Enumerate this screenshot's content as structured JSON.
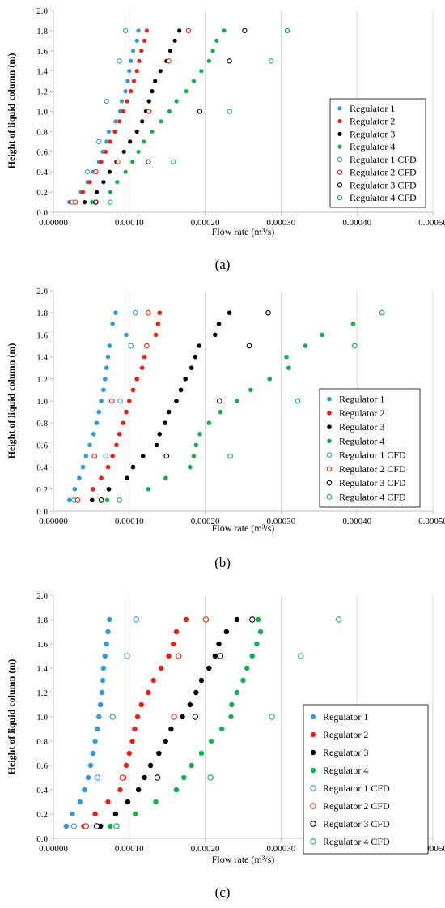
{
  "colors": {
    "Regulator 1": "#2e9bd6",
    "Regulator 2": "#f51d0d",
    "Regulator 3": "#000000",
    "Regulator 4": "#12b04b",
    "grid": "#d9d9d9",
    "axis": "#bfbfbf"
  },
  "chart_data": [
    {
      "type": "scatter",
      "panel_label": "(a)",
      "xlabel": "Flow rate (m³/s)",
      "ylabel": "Height of liquid column (m)",
      "xlim": [
        0,
        0.0005
      ],
      "ylim": [
        0,
        2.0
      ],
      "xticks": [
        0,
        0.0001,
        0.0002,
        0.0003,
        0.0004,
        0.0005
      ],
      "xtick_labels": [
        "0.00000",
        "0.00010",
        "0.00020",
        "0.00030",
        "0.00040",
        "0.00050"
      ],
      "yticks": [
        0,
        0.2,
        0.4,
        0.6,
        0.8,
        1.0,
        1.2,
        1.4,
        1.6,
        1.8,
        2.0
      ],
      "ytick_labels": [
        "0.0",
        "0.2",
        "0.4",
        "0.6",
        "0.8",
        "1.0",
        "1.2",
        "1.4",
        "1.6",
        "1.8",
        "2.0"
      ],
      "grid": "vertical",
      "legend_position": "right",
      "series": [
        {
          "name": "Regulator 1",
          "marker": "filled",
          "x": [
            2.1e-05,
            3.6e-05,
            4.5e-05,
            5.2e-05,
            6e-05,
            6.5e-05,
            7e-05,
            7.3e-05,
            8.2e-05,
            8.8e-05,
            9e-05,
            9.5e-05,
            9.8e-05,
            0.0001,
            0.000102,
            0.000105,
            0.00011,
            0.000112
          ],
          "y": [
            0.1,
            0.2,
            0.3,
            0.4,
            0.5,
            0.6,
            0.7,
            0.8,
            0.9,
            1.0,
            1.1,
            1.2,
            1.3,
            1.4,
            1.5,
            1.6,
            1.7,
            1.8
          ]
        },
        {
          "name": "Regulator 2",
          "marker": "filled",
          "x": [
            2.3e-05,
            3.9e-05,
            4.8e-05,
            5.6e-05,
            6.3e-05,
            6.9e-05,
            7.5e-05,
            8.1e-05,
            8.7e-05,
            9.2e-05,
            9.7e-05,
            0.000102,
            0.000106,
            0.00011,
            0.000113,
            0.000116,
            0.00012,
            0.000123
          ],
          "y": [
            0.1,
            0.2,
            0.3,
            0.4,
            0.5,
            0.6,
            0.7,
            0.8,
            0.9,
            1.0,
            1.1,
            1.2,
            1.3,
            1.4,
            1.5,
            1.6,
            1.7,
            1.8
          ]
        },
        {
          "name": "Regulator 3",
          "marker": "filled",
          "x": [
            4.1e-05,
            5.7e-05,
            6.6e-05,
            7.4e-05,
            8.3e-05,
            9.3e-05,
            0.000101,
            0.00011,
            0.000117,
            0.000122,
            0.000126,
            0.00013,
            0.000134,
            0.000141,
            0.000149,
            0.000154,
            0.00016,
            0.000166
          ],
          "y": [
            0.1,
            0.2,
            0.3,
            0.4,
            0.5,
            0.6,
            0.7,
            0.8,
            0.9,
            1.0,
            1.1,
            1.2,
            1.3,
            1.4,
            1.5,
            1.6,
            1.7,
            1.8
          ]
        },
        {
          "name": "Regulator 4",
          "marker": "filled",
          "x": [
            5.1e-05,
            7.5e-05,
            8.4e-05,
            9.5e-05,
            0.000104,
            0.000112,
            0.000119,
            0.00013,
            0.000142,
            0.000153,
            0.000162,
            0.000175,
            0.000185,
            0.000195,
            0.000205,
            0.00021,
            0.000215,
            0.000225
          ],
          "y": [
            0.1,
            0.2,
            0.3,
            0.4,
            0.5,
            0.6,
            0.7,
            0.8,
            0.9,
            1.0,
            1.1,
            1.2,
            1.3,
            1.4,
            1.5,
            1.6,
            1.7,
            1.8
          ]
        },
        {
          "name": "Regulator 1 CFD",
          "marker": "open",
          "x": [
            2.5e-05,
            4.5e-05,
            6e-05,
            7e-05,
            8.7e-05,
            9.5e-05
          ],
          "y": [
            0.1,
            0.4,
            0.7,
            1.1,
            1.5,
            1.8
          ]
        },
        {
          "name": "Regulator 2 CFD",
          "marker": "open",
          "x": [
            2.9e-05,
            5.6e-05,
            8.5e-05,
            0.000126,
            0.000152,
            0.000178
          ],
          "y": [
            0.1,
            0.4,
            0.5,
            1.0,
            1.5,
            1.8
          ]
        },
        {
          "name": "Regulator 3 CFD",
          "marker": "open",
          "x": [
            5.6e-05,
            0.000125,
            0.000193,
            0.000232,
            0.000252
          ],
          "y": [
            0.1,
            0.5,
            1.0,
            1.5,
            1.8
          ]
        },
        {
          "name": "Regulator 4 CFD",
          "marker": "open",
          "x": [
            7.5e-05,
            0.000158,
            0.000232,
            0.000287,
            0.000308
          ],
          "y": [
            0.1,
            0.5,
            1.0,
            1.5,
            1.8
          ]
        }
      ]
    },
    {
      "type": "scatter",
      "panel_label": "(b)",
      "xlabel": "Flow rate (m³/s)",
      "ylabel": "Height of liquid column (m)",
      "xlim": [
        0,
        0.0005
      ],
      "ylim": [
        0,
        2.0
      ],
      "xticks": [
        0,
        0.0001,
        0.0002,
        0.0003,
        0.0004,
        0.0005
      ],
      "xtick_labels": [
        "0.00000",
        "0.00010",
        "0.00020",
        "0.00030",
        "0.00040",
        "0.00050"
      ],
      "yticks": [
        0,
        0.2,
        0.4,
        0.6,
        0.8,
        1.0,
        1.2,
        1.4,
        1.6,
        1.8,
        2.0
      ],
      "ytick_labels": [
        "0.0",
        "0.2",
        "0.4",
        "0.6",
        "0.8",
        "1.0",
        "1.2",
        "1.4",
        "1.6",
        "1.8",
        "2.0"
      ],
      "grid": "vertical",
      "legend_position": "right",
      "series": [
        {
          "name": "Regulator 1",
          "marker": "filled",
          "x": [
            2.1e-05,
            2.8e-05,
            3.4e-05,
            3.9e-05,
            4.3e-05,
            4.8e-05,
            5.3e-05,
            5.7e-05,
            6e-05,
            6.3e-05,
            6.6e-05,
            6.8e-05,
            7e-05,
            7.2e-05,
            7.4e-05,
            9.6e-05,
            7.8e-05,
            8.2e-05
          ],
          "y": [
            0.1,
            0.2,
            0.3,
            0.4,
            0.5,
            0.6,
            0.7,
            0.8,
            0.9,
            1.0,
            1.1,
            1.2,
            1.3,
            1.4,
            1.5,
            1.6,
            1.7,
            1.8
          ]
        },
        {
          "name": "Regulator 2",
          "marker": "filled",
          "x": [
            3e-05,
            5.2e-05,
            6.3e-05,
            7.2e-05,
            7.8e-05,
            8.3e-05,
            8.7e-05,
            9.2e-05,
            9.6e-05,
            0.0001,
            0.000105,
            0.00011,
            0.000117,
            0.00012,
            0.000123,
            0.000135,
            0.000138,
            0.00014
          ],
          "y": [
            0.1,
            0.2,
            0.3,
            0.4,
            0.5,
            0.6,
            0.7,
            0.8,
            0.9,
            1.0,
            1.1,
            1.2,
            1.3,
            1.4,
            1.5,
            1.6,
            1.7,
            1.8
          ]
        },
        {
          "name": "Regulator 3",
          "marker": "filled",
          "x": [
            5.1e-05,
            7.3e-05,
            9.7e-05,
            0.000105,
            0.000118,
            0.000136,
            0.00014,
            0.000147,
            0.000152,
            0.000162,
            0.000168,
            0.000174,
            0.000182,
            0.000187,
            0.000192,
            0.000213,
            0.000218,
            0.000232
          ],
          "y": [
            0.1,
            0.2,
            0.3,
            0.4,
            0.5,
            0.6,
            0.7,
            0.8,
            0.9,
            1.0,
            1.1,
            1.2,
            1.3,
            1.4,
            1.5,
            1.6,
            1.7,
            1.8
          ]
        },
        {
          "name": "Regulator 4",
          "marker": "filled",
          "x": [
            7.1e-05,
            0.000125,
            0.000148,
            0.00018,
            0.000185,
            0.000188,
            0.000193,
            0.000205,
            0.00022,
            0.000242,
            0.00026,
            0.000285,
            0.00031,
            0.000307,
            0.000332,
            0.000354,
            0.000395,
            0.000433
          ],
          "y": [
            0.1,
            0.2,
            0.3,
            0.4,
            0.5,
            0.6,
            0.7,
            0.8,
            0.9,
            1.0,
            1.1,
            1.2,
            1.3,
            1.4,
            1.5,
            1.6,
            1.7,
            1.8
          ]
        },
        {
          "name": "Regulator 1 CFD",
          "marker": "open",
          "x": [
            2.7e-05,
            6.9e-05,
            8.8e-05,
            0.000102,
            0.000108
          ],
          "y": [
            0.1,
            0.5,
            1.0,
            1.5,
            1.8
          ]
        },
        {
          "name": "Regulator 2 CFD",
          "marker": "open",
          "x": [
            3.2e-05,
            5.4e-05,
            7.7e-05,
            0.000123,
            0.000125
          ],
          "y": [
            0.1,
            0.5,
            1.0,
            1.5,
            1.8
          ]
        },
        {
          "name": "Regulator 3 CFD",
          "marker": "open",
          "x": [
            6.3e-05,
            0.000149,
            0.000219,
            0.000258,
            0.000283
          ],
          "y": [
            0.1,
            0.5,
            1.0,
            1.5,
            1.8
          ]
        },
        {
          "name": "Regulator 4 CFD",
          "marker": "open",
          "x": [
            8.7e-05,
            0.000233,
            0.000322,
            0.000397,
            0.000433
          ],
          "y": [
            0.1,
            0.5,
            1.0,
            1.5,
            1.8
          ]
        }
      ]
    },
    {
      "type": "scatter",
      "panel_label": "(c)",
      "xlabel": "Flow rate (m³/s)",
      "ylabel": "Height of liquid column (m)",
      "xlim": [
        0,
        0.0005
      ],
      "ylim": [
        0,
        2.0
      ],
      "xticks": [
        0,
        0.0001,
        0.0002,
        0.0003,
        0.0004,
        0.0005
      ],
      "xtick_labels": [
        "0.00000",
        "0.00010",
        "0.00020",
        "0.00030",
        "0.00040",
        "0.00050"
      ],
      "yticks": [
        0,
        0.2,
        0.4,
        0.6,
        0.8,
        1.0,
        1.2,
        1.4,
        1.6,
        1.8,
        2.0
      ],
      "ytick_labels": [
        "0.0",
        "0.2",
        "0.4",
        "0.6",
        "0.8",
        "1.0",
        "1.2",
        "1.4",
        "1.6",
        "1.8",
        "2.0"
      ],
      "grid": "vertical",
      "legend_position": "right",
      "series": [
        {
          "name": "Regulator 1",
          "marker": "filled",
          "x": [
            1.7e-05,
            2.5e-05,
            3.5e-05,
            4.1e-05,
            4.6e-05,
            4.9e-05,
            5.2e-05,
            5.5e-05,
            5.8e-05,
            6e-05,
            6.2e-05,
            6.4e-05,
            6.5e-05,
            6.6e-05,
            6.8e-05,
            7e-05,
            7.2e-05,
            7.4e-05
          ],
          "y": [
            0.1,
            0.2,
            0.3,
            0.4,
            0.5,
            0.6,
            0.7,
            0.8,
            0.9,
            1.0,
            1.1,
            1.2,
            1.3,
            1.4,
            1.5,
            1.6,
            1.7,
            1.8
          ]
        },
        {
          "name": "Regulator 2",
          "marker": "filled",
          "x": [
            4e-05,
            5.5e-05,
            7.2e-05,
            8.8e-05,
            9.3e-05,
            9.6e-05,
            0.0001,
            0.000104,
            0.000107,
            0.000111,
            0.000116,
            0.000125,
            0.000132,
            0.000142,
            0.000152,
            0.000158,
            0.000162,
            0.000175
          ],
          "y": [
            0.1,
            0.2,
            0.3,
            0.4,
            0.5,
            0.6,
            0.7,
            0.8,
            0.9,
            1.0,
            1.1,
            1.2,
            1.3,
            1.4,
            1.5,
            1.6,
            1.7,
            1.8
          ]
        },
        {
          "name": "Regulator 3",
          "marker": "filled",
          "x": [
            6.2e-05,
            8.2e-05,
            9.8e-05,
            0.000112,
            0.00012,
            0.000128,
            0.000139,
            0.000148,
            0.000155,
            0.00017,
            0.00018,
            0.000188,
            0.000195,
            0.000205,
            0.000213,
            0.000218,
            0.000228,
            0.000242
          ],
          "y": [
            0.1,
            0.2,
            0.3,
            0.4,
            0.5,
            0.6,
            0.7,
            0.8,
            0.9,
            1.0,
            1.1,
            1.2,
            1.3,
            1.4,
            1.5,
            1.6,
            1.7,
            1.8
          ]
        },
        {
          "name": "Regulator 4",
          "marker": "filled",
          "x": [
            7.5e-05,
            0.000108,
            0.000135,
            0.000162,
            0.000172,
            0.000182,
            0.000195,
            0.000208,
            0.000222,
            0.000234,
            0.000235,
            0.000242,
            0.00025,
            0.000255,
            0.000262,
            0.000268,
            0.000273,
            0.00027
          ],
          "y": [
            0.1,
            0.2,
            0.3,
            0.4,
            0.5,
            0.6,
            0.7,
            0.8,
            0.9,
            1.0,
            1.1,
            1.2,
            1.3,
            1.4,
            1.5,
            1.6,
            1.7,
            1.8
          ]
        },
        {
          "name": "Regulator 1 CFD",
          "marker": "open",
          "x": [
            2.7e-05,
            5.8e-05,
            7.8e-05,
            9.7e-05,
            0.000109
          ],
          "y": [
            0.1,
            0.5,
            1.0,
            1.5,
            1.8
          ]
        },
        {
          "name": "Regulator 2 CFD",
          "marker": "open",
          "x": [
            4.3e-05,
            9.1e-05,
            0.000159,
            0.000165,
            0.000201
          ],
          "y": [
            0.1,
            0.5,
            1.0,
            1.5,
            1.8
          ]
        },
        {
          "name": "Regulator 3 CFD",
          "marker": "open",
          "x": [
            5.7e-05,
            0.000137,
            0.000187,
            0.00022,
            0.000262
          ],
          "y": [
            0.1,
            0.5,
            1.0,
            1.5,
            1.8
          ]
        },
        {
          "name": "Regulator 4 CFD",
          "marker": "open",
          "x": [
            8.3e-05,
            0.000207,
            0.000288,
            0.000326,
            0.000376
          ],
          "y": [
            0.1,
            0.5,
            1.0,
            1.5,
            1.8
          ]
        }
      ]
    }
  ]
}
